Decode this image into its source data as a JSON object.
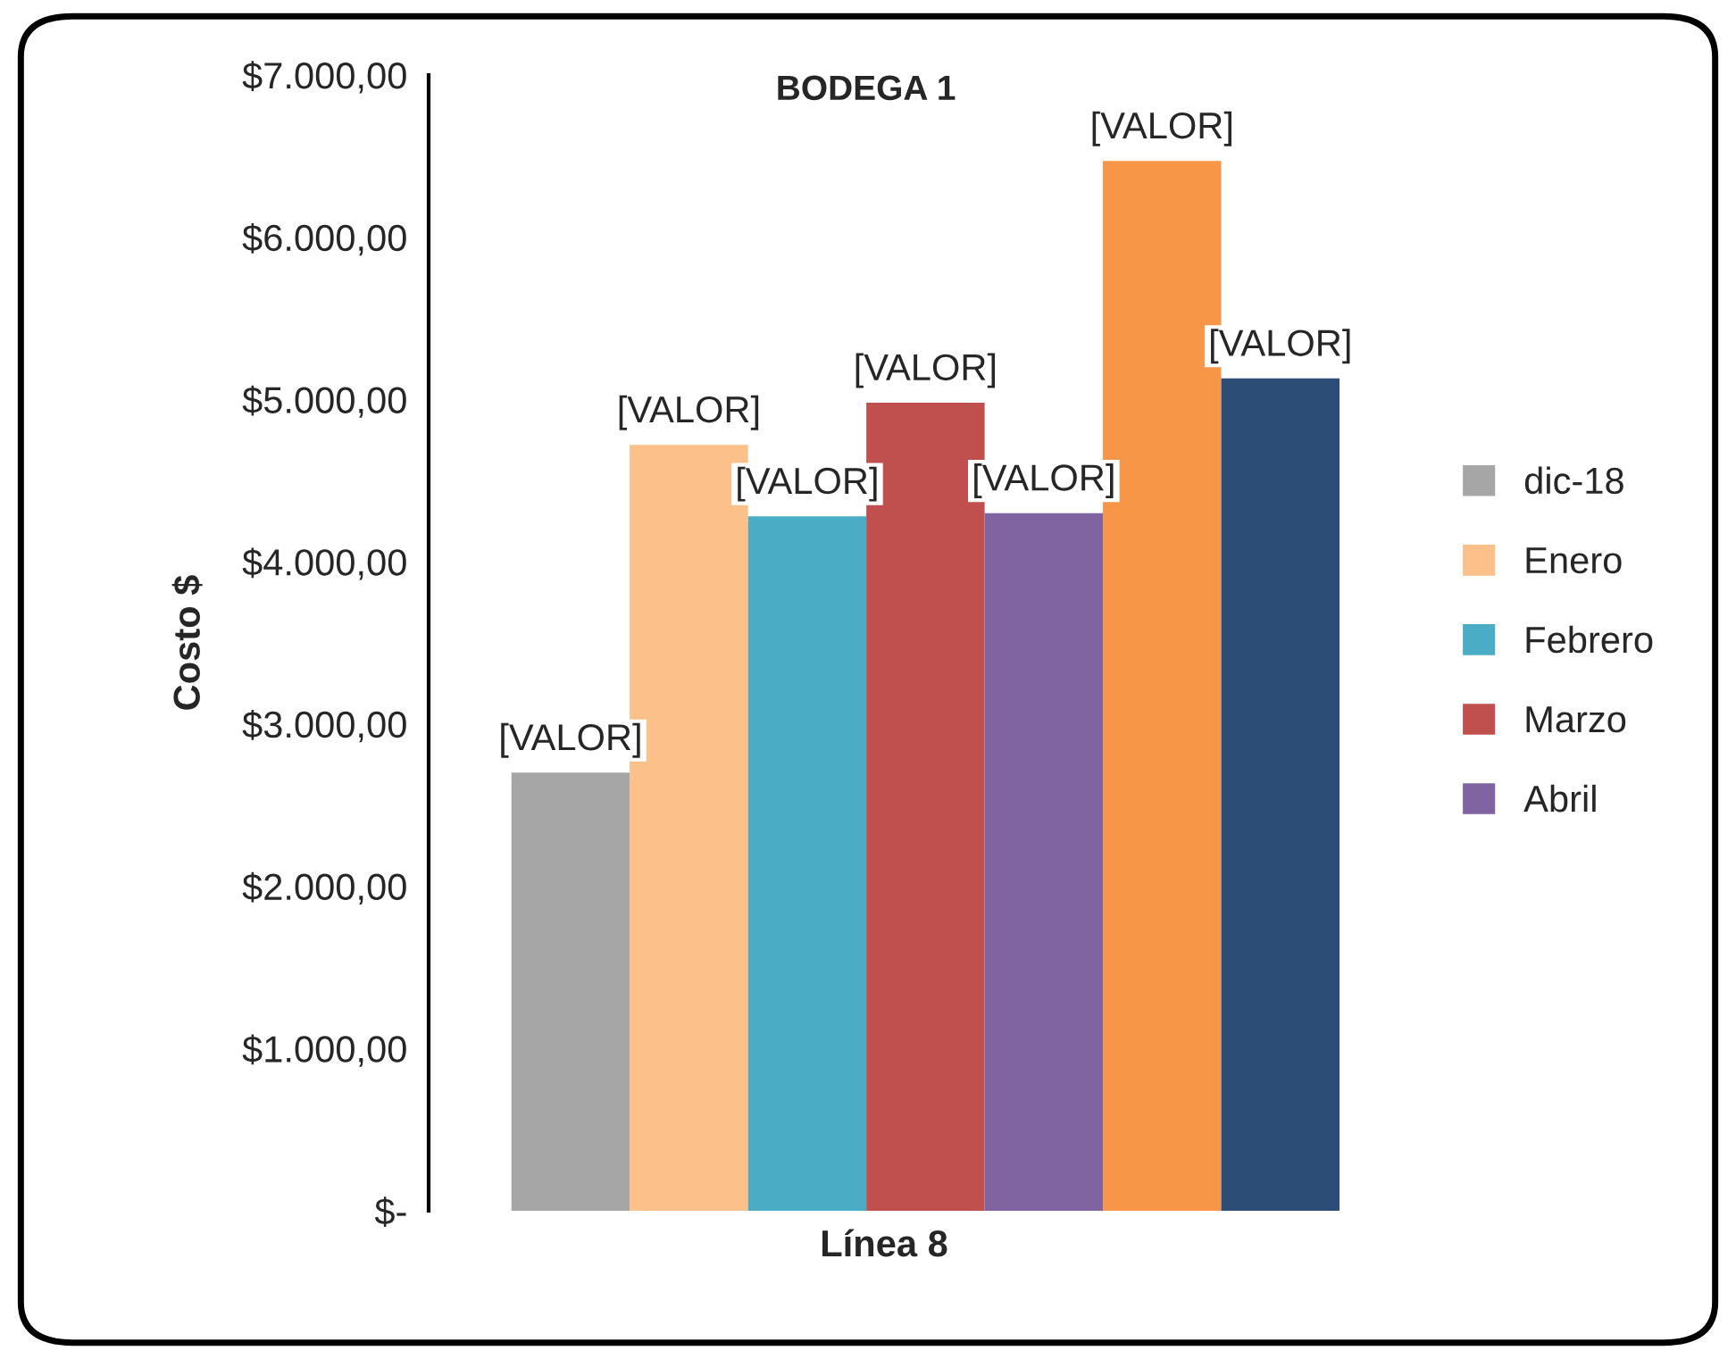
{
  "chart_data": {
    "type": "bar",
    "title": "BODEGA 1",
    "xlabel": "Línea 8",
    "ylabel": "Costo $",
    "categories": [
      null
    ],
    "series": [
      {
        "name": "dic-18",
        "color": "#a6a6a6",
        "values": [
          2700
        ],
        "value_labels": [
          "[VALOR]"
        ]
      },
      {
        "name": "Enero",
        "color": "#fcc08a",
        "values": [
          4720
        ],
        "value_labels": [
          "[VALOR]"
        ]
      },
      {
        "name": "Febrero",
        "color": "#4bacc6",
        "values": [
          4280
        ],
        "value_labels": [
          "[VALOR]"
        ]
      },
      {
        "name": "Marzo",
        "color": "#c0504d",
        "values": [
          4980
        ],
        "value_labels": [
          "[VALOR]"
        ]
      },
      {
        "name": "Abril",
        "color": "#8064a2",
        "values": [
          4300
        ],
        "value_labels": [
          "[VALOR]"
        ]
      },
      {
        "color": "#f79646",
        "values": [
          6470
        ],
        "value_labels": [
          "[VALOR]"
        ]
      },
      {
        "color": "#2c4d75",
        "values": [
          5130
        ],
        "value_labels": [
          "[VALOR]"
        ]
      }
    ],
    "ylim": [
      0,
      7000
    ],
    "yticks": [
      {
        "value": 0,
        "label": "$-"
      },
      {
        "value": 1000,
        "label": "$1.000,00"
      },
      {
        "value": 2000,
        "label": "$2.000,00"
      },
      {
        "value": 3000,
        "label": "$3.000,00"
      },
      {
        "value": 4000,
        "label": "$4.000,00"
      },
      {
        "value": 5000,
        "label": "$5.000,00"
      },
      {
        "value": 6000,
        "label": "$6.000,00"
      },
      {
        "value": 7000,
        "label": "$7.000,00"
      }
    ],
    "grid": false,
    "legend": "right"
  }
}
